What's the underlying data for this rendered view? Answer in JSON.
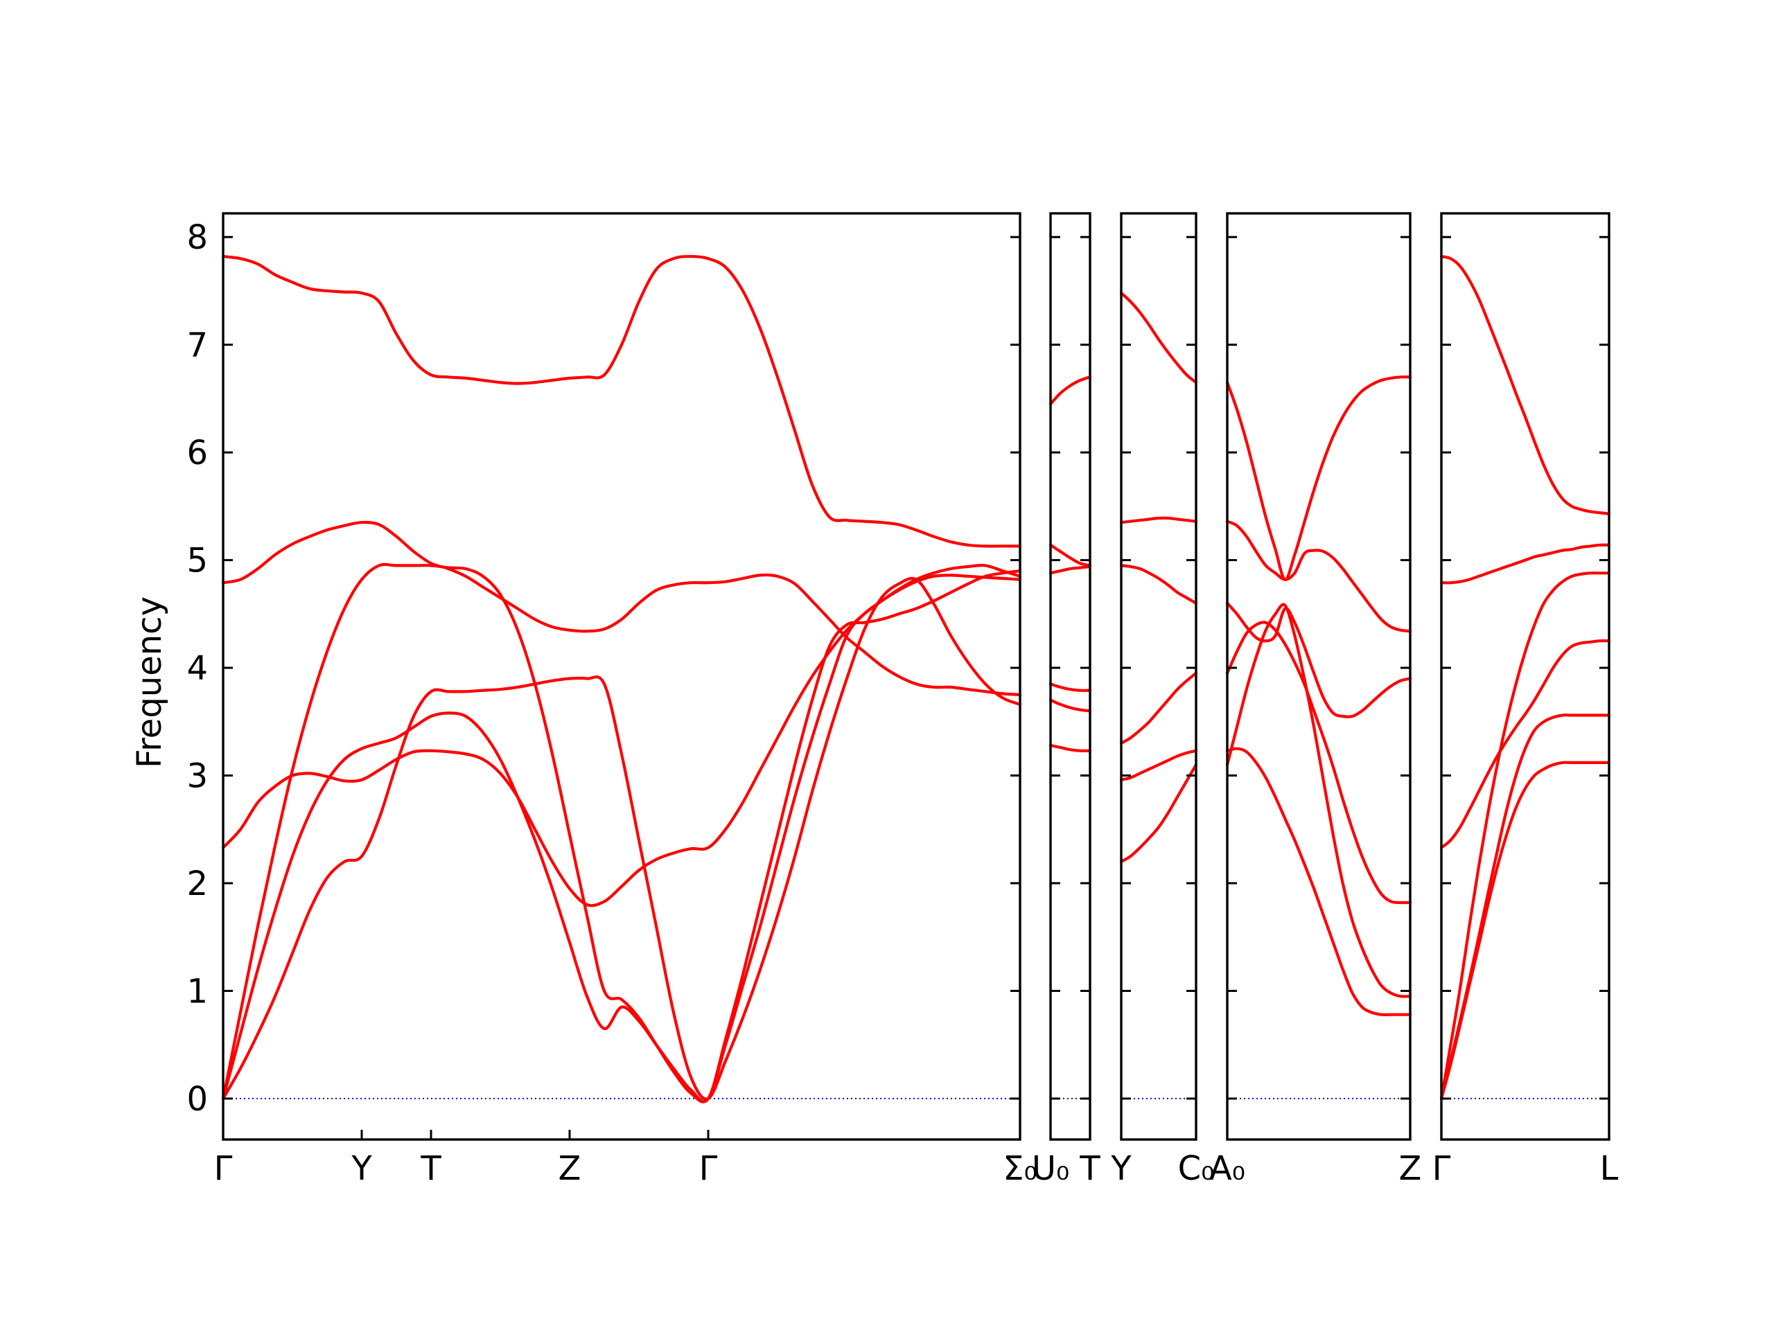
{
  "chart_data": {
    "type": "line",
    "ylabel": "Frequency",
    "ylim": [
      -0.38,
      8.22
    ],
    "yticks": [
      "0",
      "1",
      "2",
      "3",
      "4",
      "5",
      "6",
      "7",
      "8"
    ],
    "ytick_values": [
      0,
      1,
      2,
      3,
      4,
      5,
      6,
      7,
      8
    ],
    "line_color": "#ff0000",
    "zero_line_color": "#0000ff",
    "grid": false,
    "segment_labels": [
      [
        "Γ",
        "Y",
        "T",
        "Z",
        "Γ",
        "Σ₀"
      ],
      [
        "U₀",
        "T"
      ],
      [
        "Y",
        "C₀"
      ],
      [
        "A₀",
        "Z"
      ],
      [
        "Γ",
        "L"
      ]
    ],
    "tick_labels": [
      "Γ",
      "Y",
      "T",
      "Z",
      "Γ",
      "Σ₀",
      "U₀",
      "T",
      "Y",
      "C₀",
      "A₀",
      "Z",
      "Γ",
      "L"
    ],
    "segments": [
      {
        "x": [
          0,
          0.5,
          1.0,
          1.5,
          2.0,
          2.5,
          3.0,
          3.5,
          4.0,
          4.5,
          5.0,
          5.5,
          6.0,
          6.5,
          7.0,
          7.5,
          8.0,
          8.5,
          9.0,
          9.5,
          10.0,
          10.5,
          11.0,
          11.5,
          12.0,
          12.5,
          13.0,
          13.5,
          14.0,
          14.5,
          15.0,
          15.5,
          16.0,
          16.5,
          17.0,
          17.5,
          18.0,
          18.5,
          19.0,
          19.5,
          20.0,
          20.5,
          21.0,
          21.5,
          22.0,
          22.5,
          23.0
        ],
        "series": [
          {
            "name": "",
            "values": [
              0,
              0.8,
              1.6,
              2.35,
              3.05,
              3.65,
              4.15,
              4.55,
              4.82,
              4.95,
              4.95,
              4.95,
              4.95,
              4.93,
              4.92,
              4.85,
              4.68,
              4.35,
              3.85,
              3.2,
              2.45,
              1.7,
              1.0,
              0.92,
              0.75,
              0.5,
              0.25,
              0.05,
              0,
              0.5,
              1.05,
              1.6,
              2.2,
              2.8,
              3.35,
              3.85,
              4.3,
              4.5,
              4.62,
              4.73,
              4.82,
              4.88,
              4.92,
              4.94,
              4.95,
              4.9,
              4.85
            ]
          },
          {
            "name": "",
            "values": [
              0,
              0.6,
              1.2,
              1.75,
              2.25,
              2.65,
              2.95,
              3.15,
              3.25,
              3.3,
              3.35,
              3.45,
              3.55,
              3.58,
              3.55,
              3.4,
              3.15,
              2.8,
              2.4,
              1.95,
              1.45,
              0.95,
              0.65,
              0.85,
              0.72,
              0.5,
              0.28,
              0.08,
              0,
              0.55,
              1.15,
              1.8,
              2.45,
              3.1,
              3.7,
              4.2,
              4.4,
              4.42,
              4.45,
              4.5,
              4.55,
              4.62,
              4.7,
              4.78,
              4.85,
              4.88,
              4.9
            ]
          },
          {
            "name": "",
            "values": [
              0,
              0.28,
              0.6,
              0.95,
              1.35,
              1.75,
              2.05,
              2.2,
              2.25,
              2.6,
              3.1,
              3.55,
              3.78,
              3.78,
              3.78,
              3.79,
              3.8,
              3.82,
              3.85,
              3.88,
              3.9,
              3.9,
              3.85,
              3.2,
              2.4,
              1.6,
              0.8,
              0.2,
              0,
              0.35,
              0.75,
              1.2,
              1.7,
              2.25,
              2.85,
              3.4,
              3.9,
              4.35,
              4.65,
              4.78,
              4.82,
              4.6,
              4.3,
              4.05,
              3.85,
              3.72,
              3.66
            ]
          },
          {
            "name": "",
            "values": [
              2.33,
              2.5,
              2.75,
              2.9,
              3.0,
              3.02,
              2.99,
              2.95,
              2.96,
              3.05,
              3.15,
              3.22,
              3.23,
              3.22,
              3.2,
              3.15,
              3.02,
              2.8,
              2.5,
              2.2,
              1.95,
              1.8,
              1.83,
              1.97,
              2.12,
              2.22,
              2.28,
              2.32,
              2.33,
              2.5,
              2.75,
              3.05,
              3.35,
              3.65,
              3.92,
              4.15,
              4.35,
              4.5,
              4.62,
              4.72,
              4.8,
              4.85,
              4.86,
              4.85,
              4.84,
              4.83,
              4.82
            ]
          },
          {
            "name": "",
            "values": [
              4.79,
              4.82,
              4.92,
              5.05,
              5.15,
              5.22,
              5.28,
              5.32,
              5.35,
              5.33,
              5.22,
              5.08,
              4.97,
              4.92,
              4.85,
              4.75,
              4.65,
              4.55,
              4.45,
              4.38,
              4.35,
              4.34,
              4.36,
              4.45,
              4.6,
              4.72,
              4.77,
              4.79,
              4.79,
              4.8,
              4.83,
              4.86,
              4.85,
              4.78,
              4.62,
              4.45,
              4.28,
              4.15,
              4.02,
              3.92,
              3.85,
              3.82,
              3.82,
              3.8,
              3.78,
              3.76,
              3.75
            ]
          },
          {
            "name": "",
            "values": [
              7.82,
              7.8,
              7.75,
              7.65,
              7.58,
              7.52,
              7.5,
              7.49,
              7.48,
              7.4,
              7.1,
              6.85,
              6.72,
              6.7,
              6.69,
              6.67,
              6.65,
              6.64,
              6.65,
              6.67,
              6.69,
              6.7,
              6.72,
              7.0,
              7.4,
              7.7,
              7.8,
              7.82,
              7.8,
              7.72,
              7.5,
              7.15,
              6.7,
              6.2,
              5.7,
              5.4,
              5.37,
              5.36,
              5.35,
              5.33,
              5.28,
              5.22,
              5.17,
              5.14,
              5.13,
              5.13,
              5.13
            ]
          }
        ]
      },
      {
        "x": [
          0,
          0.5,
          1.0,
          1.5,
          2.0
        ],
        "series": [
          {
            "name": "",
            "values": [
              6.45,
              6.55,
              6.62,
              6.67,
              6.7
            ]
          },
          {
            "name": "",
            "values": [
              5.14,
              5.08,
              5.02,
              4.97,
              4.95
            ]
          },
          {
            "name": "",
            "values": [
              4.88,
              4.9,
              4.92,
              4.93,
              4.94
            ]
          },
          {
            "name": "",
            "values": [
              3.85,
              3.82,
              3.8,
              3.79,
              3.79
            ]
          },
          {
            "name": "",
            "values": [
              3.7,
              3.66,
              3.63,
              3.61,
              3.6
            ]
          },
          {
            "name": "",
            "values": [
              3.28,
              3.26,
              3.24,
              3.23,
              3.23
            ]
          }
        ]
      },
      {
        "x": [
          0,
          0.5,
          1.0,
          1.5,
          2.0,
          2.5,
          3.0,
          3.5,
          4.0
        ],
        "series": [
          {
            "name": "",
            "values": [
              7.48,
              7.4,
              7.3,
              7.18,
              7.05,
              6.93,
              6.82,
              6.72,
              6.65
            ]
          },
          {
            "name": "",
            "values": [
              5.35,
              5.36,
              5.37,
              5.38,
              5.39,
              5.39,
              5.38,
              5.37,
              5.36
            ]
          },
          {
            "name": "",
            "values": [
              4.95,
              4.94,
              4.92,
              4.88,
              4.83,
              4.77,
              4.7,
              4.65,
              4.6
            ]
          },
          {
            "name": "",
            "values": [
              3.3,
              3.35,
              3.42,
              3.5,
              3.6,
              3.7,
              3.8,
              3.88,
              3.95
            ]
          },
          {
            "name": "",
            "values": [
              2.96,
              2.98,
              3.02,
              3.06,
              3.1,
              3.14,
              3.18,
              3.21,
              3.23
            ]
          },
          {
            "name": "",
            "values": [
              2.2,
              2.25,
              2.33,
              2.42,
              2.52,
              2.65,
              2.8,
              2.95,
              3.1
            ]
          }
        ]
      },
      {
        "x": [
          0,
          0.5,
          1.0,
          1.5,
          2.0,
          2.5,
          3.0,
          3.5,
          4.0,
          4.5,
          5.0,
          5.5,
          6.0,
          6.5,
          7.0,
          7.5,
          8.0,
          8.5,
          9.0,
          9.5
        ],
        "series": [
          {
            "name": "",
            "values": [
              6.65,
              6.4,
              6.1,
              5.75,
              5.4,
              5.1,
              4.82,
              5.05,
              5.35,
              5.65,
              5.92,
              6.15,
              6.33,
              6.47,
              6.57,
              6.63,
              6.67,
              6.69,
              6.7,
              6.7
            ]
          },
          {
            "name": "",
            "values": [
              5.36,
              5.32,
              5.22,
              5.08,
              4.95,
              4.88,
              4.82,
              4.88,
              5.06,
              5.09,
              5.08,
              5.02,
              4.92,
              4.8,
              4.68,
              4.56,
              4.45,
              4.38,
              4.35,
              4.34
            ]
          },
          {
            "name": "",
            "values": [
              4.6,
              4.5,
              4.38,
              4.28,
              4.25,
              4.3,
              4.55,
              4.42,
              4.2,
              3.95,
              3.72,
              3.58,
              3.55,
              3.55,
              3.6,
              3.68,
              3.76,
              3.83,
              3.88,
              3.9
            ]
          },
          {
            "name": "",
            "values": [
              3.95,
              4.15,
              4.32,
              4.4,
              4.42,
              4.35,
              4.22,
              4.05,
              3.85,
              3.6,
              3.35,
              3.08,
              2.78,
              2.5,
              2.25,
              2.05,
              1.9,
              1.83,
              1.82,
              1.82
            ]
          },
          {
            "name": "",
            "values": [
              3.1,
              3.45,
              3.8,
              4.1,
              4.35,
              4.5,
              4.58,
              4.3,
              3.9,
              3.45,
              2.95,
              2.45,
              2.0,
              1.65,
              1.4,
              1.2,
              1.05,
              0.98,
              0.95,
              0.95
            ]
          },
          {
            "name": "",
            "values": [
              3.23,
              3.25,
              3.22,
              3.12,
              2.98,
              2.8,
              2.6,
              2.4,
              2.18,
              1.95,
              1.7,
              1.45,
              1.2,
              0.98,
              0.85,
              0.8,
              0.78,
              0.78,
              0.78,
              0.78
            ]
          }
        ]
      },
      {
        "x": [
          0,
          0.5,
          1.0,
          1.5,
          2.0,
          2.5,
          3.0,
          3.5,
          4.0,
          4.5,
          5.0,
          5.5,
          6.0,
          6.5,
          7.0,
          7.5,
          8.0,
          8.5,
          9.0
        ],
        "series": [
          {
            "name": "",
            "values": [
              7.82,
              7.8,
              7.73,
              7.6,
              7.43,
              7.22,
              7.0,
              6.78,
              6.55,
              6.33,
              6.1,
              5.88,
              5.7,
              5.57,
              5.5,
              5.47,
              5.45,
              5.44,
              5.43
            ]
          },
          {
            "name": "",
            "values": [
              4.79,
              4.79,
              4.8,
              4.82,
              4.85,
              4.88,
              4.91,
              4.94,
              4.97,
              5.0,
              5.03,
              5.05,
              5.07,
              5.09,
              5.1,
              5.12,
              5.13,
              5.14,
              5.14
            ]
          },
          {
            "name": "",
            "values": [
              0,
              0.5,
              1.02,
              1.6,
              2.15,
              2.65,
              3.1,
              3.5,
              3.85,
              4.15,
              4.4,
              4.6,
              4.72,
              4.8,
              4.85,
              4.87,
              4.88,
              4.88,
              4.88
            ]
          },
          {
            "name": "",
            "values": [
              2.33,
              2.4,
              2.52,
              2.68,
              2.85,
              3.02,
              3.18,
              3.32,
              3.45,
              3.57,
              3.7,
              3.85,
              4.0,
              4.12,
              4.2,
              4.23,
              4.24,
              4.25,
              4.25
            ]
          },
          {
            "name": "",
            "values": [
              0,
              0.35,
              0.72,
              1.1,
              1.5,
              1.9,
              2.3,
              2.68,
              3.0,
              3.25,
              3.42,
              3.5,
              3.54,
              3.56,
              3.56,
              3.56,
              3.56,
              3.56,
              3.56
            ]
          },
          {
            "name": "",
            "values": [
              0,
              0.32,
              0.68,
              1.05,
              1.42,
              1.8,
              2.15,
              2.45,
              2.7,
              2.88,
              3.0,
              3.06,
              3.1,
              3.12,
              3.12,
              3.12,
              3.12,
              3.12,
              3.12
            ]
          }
        ]
      }
    ]
  }
}
